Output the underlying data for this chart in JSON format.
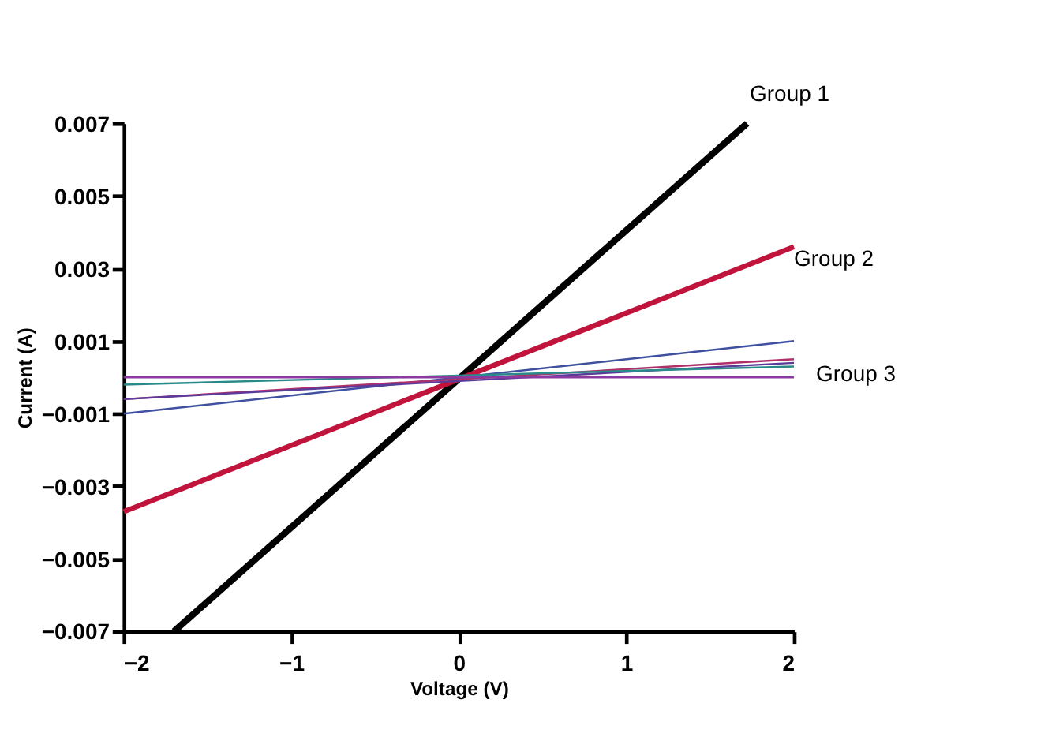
{
  "chart_data": {
    "type": "line",
    "xlabel": "Voltage (V)",
    "ylabel": "Current (A)",
    "xlim": [
      -2,
      2
    ],
    "xticks": [
      -2,
      -1,
      0,
      1,
      2
    ],
    "ylim": [
      -0.007,
      0.007
    ],
    "yticks": [
      -0.007,
      -0.005,
      -0.003,
      -0.001,
      0.001,
      0.003,
      0.005,
      0.007
    ],
    "grid": false,
    "marker": "none",
    "line_style": "solid",
    "series": [
      {
        "color": "#000000",
        "x": [
          -1.7,
          1.72
        ],
        "values": [
          -0.007,
          0.007
        ]
      },
      {
        "color": "#c0143c",
        "x": [
          -2,
          2
        ],
        "values": [
          -0.0037,
          0.0036
        ]
      },
      {
        "color": "#4050a0",
        "x": [
          -2,
          2
        ],
        "values": [
          -0.001,
          0.001
        ]
      },
      {
        "color": "#b0306a",
        "x": [
          -2,
          2
        ],
        "values": [
          -0.0006,
          0.0005
        ]
      },
      {
        "color": "#5a3a9a",
        "x": [
          -2,
          2
        ],
        "values": [
          -0.0006,
          0.0004
        ]
      },
      {
        "color": "#2a8a8a",
        "x": [
          -2,
          2
        ],
        "values": [
          -0.0002,
          0.0003
        ]
      },
      {
        "color": "#8a3aa0",
        "x": [
          -2,
          2
        ],
        "values": [
          0.0,
          0.0
        ]
      }
    ],
    "annotations": [
      "Group 1",
      "Group 2",
      "Group 3"
    ]
  }
}
